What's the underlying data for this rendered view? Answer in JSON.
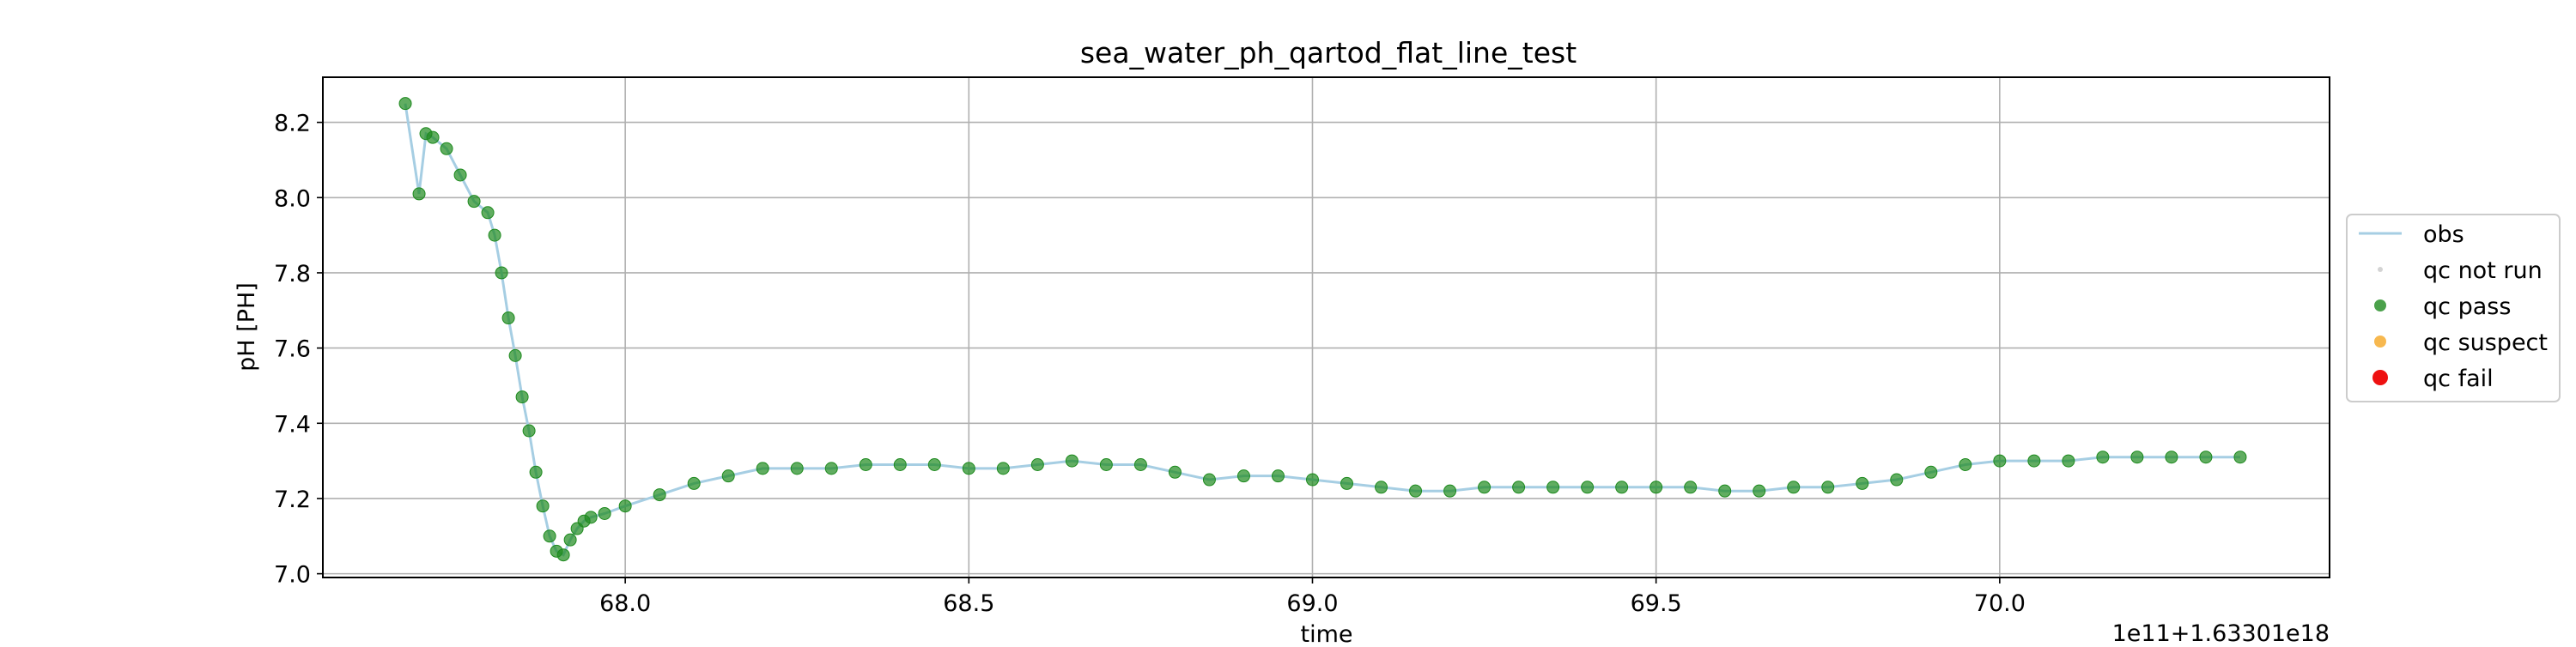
{
  "chart_data": {
    "type": "scatter",
    "title": "sea_water_ph_qartod_flat_line_test",
    "xlabel": "time",
    "ylabel": "pH [PH]",
    "x_offset_label": "1e11+1.63301e18",
    "x_ticks": [
      "68.0",
      "68.5",
      "69.0",
      "69.5",
      "70.0"
    ],
    "y_ticks": [
      "7.0",
      "7.2",
      "7.4",
      "7.6",
      "7.8",
      "8.0",
      "8.2"
    ],
    "xlim": [
      67.56,
      70.48
    ],
    "ylim": [
      6.99,
      8.32
    ],
    "grid": true,
    "legend_position": "center-right-outside",
    "colors": {
      "obs": "#a6cee3",
      "qc_not_run": "#d3d3d3",
      "qc_pass": "#1e8a1e",
      "qc_suspect": "#f5a623",
      "qc_fail": "#ee1111"
    },
    "legend": [
      {
        "key": "obs",
        "label": "obs",
        "marker": "line"
      },
      {
        "key": "qc_not_run",
        "label": "qc not run",
        "marker": "dot-small"
      },
      {
        "key": "qc_pass",
        "label": "qc pass",
        "marker": "dot"
      },
      {
        "key": "qc_suspect",
        "label": "qc suspect",
        "marker": "dot"
      },
      {
        "key": "qc_fail",
        "label": "qc fail",
        "marker": "dot-large"
      }
    ],
    "series": [
      {
        "name": "qc pass",
        "x": [
          67.68,
          67.7,
          67.71,
          67.72,
          67.74,
          67.76,
          67.78,
          67.8,
          67.81,
          67.82,
          67.83,
          67.84,
          67.85,
          67.86,
          67.87,
          67.88,
          67.89,
          67.9,
          67.91,
          67.92,
          67.93,
          67.94,
          67.95,
          67.97,
          68.0,
          68.05,
          68.1,
          68.15,
          68.2,
          68.25,
          68.3,
          68.35,
          68.4,
          68.45,
          68.5,
          68.55,
          68.6,
          68.65,
          68.7,
          68.75,
          68.8,
          68.85,
          68.9,
          68.95,
          69.0,
          69.05,
          69.1,
          69.15,
          69.2,
          69.25,
          69.3,
          69.35,
          69.4,
          69.45,
          69.5,
          69.55,
          69.6,
          69.65,
          69.7,
          69.75,
          69.8,
          69.85,
          69.9,
          69.95,
          70.0,
          70.05,
          70.1,
          70.15,
          70.2,
          70.25,
          70.3,
          70.35
        ],
        "y": [
          8.25,
          8.01,
          8.17,
          8.16,
          8.13,
          8.06,
          7.99,
          7.96,
          7.9,
          7.8,
          7.68,
          7.58,
          7.47,
          7.38,
          7.27,
          7.18,
          7.1,
          7.06,
          7.05,
          7.09,
          7.12,
          7.14,
          7.15,
          7.16,
          7.18,
          7.21,
          7.24,
          7.26,
          7.28,
          7.28,
          7.28,
          7.29,
          7.29,
          7.29,
          7.28,
          7.28,
          7.29,
          7.3,
          7.29,
          7.29,
          7.27,
          7.25,
          7.26,
          7.26,
          7.25,
          7.24,
          7.23,
          7.22,
          7.22,
          7.23,
          7.23,
          7.23,
          7.23,
          7.23,
          7.23,
          7.23,
          7.22,
          7.22,
          7.23,
          7.23,
          7.24,
          7.25,
          7.27,
          7.29,
          7.3,
          7.3,
          7.3,
          7.31,
          7.31,
          7.31,
          7.31,
          7.31
        ]
      }
    ]
  }
}
